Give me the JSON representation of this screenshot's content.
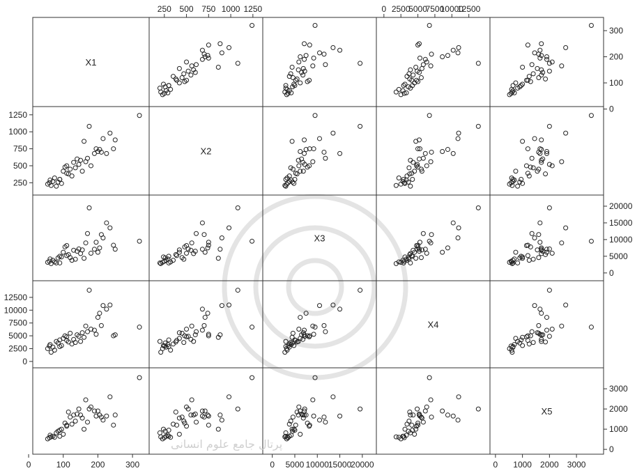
{
  "chart_data": {
    "type": "scatter",
    "title": "",
    "grid": false,
    "variables": [
      {
        "name": "X1",
        "ticks": [
          0,
          100,
          200,
          300
        ],
        "tick_labels": [
          "0",
          "100",
          "200",
          "300"
        ],
        "range": [
          20,
          340
        ]
      },
      {
        "name": "X2",
        "ticks": [
          250,
          500,
          750,
          1000,
          1250
        ],
        "tick_labels": [
          "250",
          "500",
          "750",
          "1000",
          "1250"
        ],
        "range": [
          110,
          1330
        ]
      },
      {
        "name": "X3",
        "ticks": [
          0,
          5000,
          10000,
          15000,
          20000
        ],
        "tick_labels": [
          "0",
          "5000",
          "10000",
          "15000",
          "20000"
        ],
        "range": [
          -1500,
          22500
        ]
      },
      {
        "name": "X4",
        "ticks": [
          0,
          2500,
          5000,
          7500,
          10000,
          12500
        ],
        "tick_labels": [
          "0",
          "2500",
          "5000",
          "7500",
          "10000",
          "12500"
        ],
        "range": [
          -700,
          15200
        ]
      },
      {
        "name": "X5",
        "ticks": [
          0,
          1000,
          2000,
          3000
        ],
        "tick_labels": [
          "0",
          "1000",
          "2000",
          "3000"
        ],
        "range": [
          -100,
          3900
        ]
      }
    ],
    "tick_placement": {
      "X1": [
        "bottom",
        "right"
      ],
      "X2": [
        "top",
        "left"
      ],
      "X3": [
        "bottom",
        "right"
      ],
      "X4": [
        "top",
        "left"
      ],
      "X5": [
        "bottom",
        "right"
      ]
    },
    "observations": [
      {
        "X1": 55,
        "X2": 230,
        "X3": 3200,
        "X4": 2500,
        "X5": 520
      },
      {
        "X1": 60,
        "X2": 250,
        "X3": 3500,
        "X4": 3000,
        "X5": 580
      },
      {
        "X1": 65,
        "X2": 210,
        "X3": 2800,
        "X4": 1800,
        "X5": 620
      },
      {
        "X1": 70,
        "X2": 270,
        "X3": 3800,
        "X4": 2800,
        "X5": 650
      },
      {
        "X1": 62,
        "X2": 290,
        "X3": 4200,
        "X4": 3300,
        "X5": 700
      },
      {
        "X1": 75,
        "X2": 320,
        "X3": 3300,
        "X4": 2200,
        "X5": 600
      },
      {
        "X1": 80,
        "X2": 200,
        "X3": 3000,
        "X4": 3900,
        "X5": 820
      },
      {
        "X1": 85,
        "X2": 260,
        "X3": 4500,
        "X4": 3600,
        "X5": 900
      },
      {
        "X1": 90,
        "X2": 300,
        "X3": 5000,
        "X4": 4200,
        "X5": 950
      },
      {
        "X1": 95,
        "X2": 240,
        "X3": 4800,
        "X4": 3100,
        "X5": 1000
      },
      {
        "X1": 100,
        "X2": 420,
        "X3": 6200,
        "X4": 4500,
        "X5": 750
      },
      {
        "X1": 105,
        "X2": 480,
        "X3": 7800,
        "X4": 5000,
        "X5": 1300
      },
      {
        "X1": 110,
        "X2": 500,
        "X3": 8200,
        "X4": 4800,
        "X5": 1150
      },
      {
        "X1": 115,
        "X2": 380,
        "X3": 5500,
        "X4": 3800,
        "X5": 1850
      },
      {
        "X1": 120,
        "X2": 450,
        "X3": 4600,
        "X4": 5500,
        "X5": 1600
      },
      {
        "X1": 125,
        "X2": 350,
        "X3": 3800,
        "X4": 3400,
        "X5": 1250
      },
      {
        "X1": 130,
        "X2": 550,
        "X3": 6800,
        "X4": 4300,
        "X5": 1700
      },
      {
        "X1": 140,
        "X2": 600,
        "X3": 6500,
        "X4": 5200,
        "X5": 1750
      },
      {
        "X1": 145,
        "X2": 520,
        "X3": 7200,
        "X4": 4900,
        "X5": 2000
      },
      {
        "X1": 150,
        "X2": 580,
        "X3": 5800,
        "X4": 3900,
        "X5": 1700
      },
      {
        "X1": 155,
        "X2": 420,
        "X3": 6900,
        "X4": 5600,
        "X5": 1550
      },
      {
        "X1": 160,
        "X2": 860,
        "X3": 4400,
        "X4": 4700,
        "X5": 1000
      },
      {
        "X1": 170,
        "X2": 610,
        "X3": 11800,
        "X4": 5800,
        "X5": 1350
      },
      {
        "X1": 180,
        "X2": 500,
        "X3": 5900,
        "X4": 6300,
        "X5": 2100
      },
      {
        "X1": 190,
        "X2": 680,
        "X3": 7100,
        "X4": 6100,
        "X5": 1900
      },
      {
        "X1": 195,
        "X2": 750,
        "X3": 9200,
        "X4": 5300,
        "X5": 1650
      },
      {
        "X1": 200,
        "X2": 710,
        "X3": 6200,
        "X4": 8600,
        "X5": 1900
      },
      {
        "X1": 205,
        "X2": 740,
        "X3": 7500,
        "X4": 9400,
        "X5": 1700
      },
      {
        "X1": 210,
        "X2": 700,
        "X3": 11500,
        "X4": 7000,
        "X5": 1600
      },
      {
        "X1": 215,
        "X2": 900,
        "X3": 10500,
        "X4": 10900,
        "X5": 1450
      },
      {
        "X1": 225,
        "X2": 680,
        "X3": 15000,
        "X4": 10200,
        "X5": 1650
      },
      {
        "X1": 235,
        "X2": 980,
        "X3": 13500,
        "X4": 11000,
        "X5": 2600
      },
      {
        "X1": 175,
        "X2": 1080,
        "X3": 19500,
        "X4": 13900,
        "X5": 2000
      },
      {
        "X1": 245,
        "X2": 750,
        "X3": 8300,
        "X4": 5000,
        "X5": 1200
      },
      {
        "X1": 165,
        "X2": 560,
        "X3": 9000,
        "X4": 6900,
        "X5": 2450
      },
      {
        "X1": 90,
        "X2": 300,
        "X3": 3000,
        "X4": 2900,
        "X5": 650
      },
      {
        "X1": 320,
        "X2": 1240,
        "X3": 9500,
        "X4": 6700,
        "X5": 3550
      },
      {
        "X1": 250,
        "X2": 880,
        "X3": 7100,
        "X4": 5200,
        "X5": 1700
      },
      {
        "X1": 110,
        "X2": 390,
        "X3": 5200,
        "X4": 4100,
        "X5": 1200
      },
      {
        "X1": 135,
        "X2": 470,
        "X3": 4100,
        "X4": 3700,
        "X5": 1400
      }
    ]
  }
}
